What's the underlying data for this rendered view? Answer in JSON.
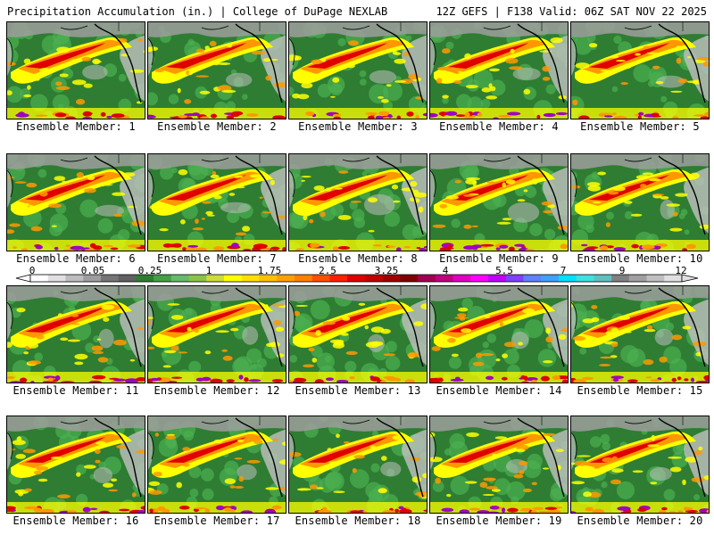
{
  "header": {
    "left_title": "Precipitation Accumulation (in.) | College of DuPage NEXLAB",
    "right_title": "12Z GEFS | F138 Valid: 06Z SAT NOV 22 2025"
  },
  "panels": [
    {
      "label": "Ensemble Member: 1"
    },
    {
      "label": "Ensemble Member: 2"
    },
    {
      "label": "Ensemble Member: 3"
    },
    {
      "label": "Ensemble Member: 4"
    },
    {
      "label": "Ensemble Member: 5"
    },
    {
      "label": "Ensemble Member: 6"
    },
    {
      "label": "Ensemble Member: 7"
    },
    {
      "label": "Ensemble Member: 8"
    },
    {
      "label": "Ensemble Member: 9"
    },
    {
      "label": "Ensemble Member: 10"
    },
    {
      "label": "Ensemble Member: 11"
    },
    {
      "label": "Ensemble Member: 12"
    },
    {
      "label": "Ensemble Member: 13"
    },
    {
      "label": "Ensemble Member: 14"
    },
    {
      "label": "Ensemble Member: 15"
    },
    {
      "label": "Ensemble Member: 16"
    },
    {
      "label": "Ensemble Member: 17"
    },
    {
      "label": "Ensemble Member: 18"
    },
    {
      "label": "Ensemble Member: 19"
    },
    {
      "label": "Ensemble Member: 20"
    }
  ],
  "colorbar": {
    "tick_labels": [
      "0",
      "0.05",
      "0.25",
      "1",
      "1.75",
      "2.5",
      "3.25",
      "4",
      "5.5",
      "7",
      "9",
      "12"
    ],
    "colors": [
      "#ffffff",
      "#e0e0e0",
      "#bdbdbd",
      "#9e9e9e",
      "#757575",
      "#616161",
      "#2e7d32",
      "#43a047",
      "#66bb6a",
      "#8bc34a",
      "#cddc39",
      "#ffff00",
      "#ffe000",
      "#ffc000",
      "#ffa000",
      "#ff8000",
      "#ff5000",
      "#ff2000",
      "#e00000",
      "#c00000",
      "#a00000",
      "#800000",
      "#a00050",
      "#c00080",
      "#e000c0",
      "#ff00ff",
      "#c000ff",
      "#8040ff",
      "#6080ff",
      "#40a0ff",
      "#00e0ff",
      "#40e0e0",
      "#60c0c0",
      "#808080",
      "#a0a0a0",
      "#c0c0c0",
      "#e0e0e0"
    ]
  },
  "map_colors": {
    "ocean_base": "#2e7d32",
    "ocean_mid": "#4caf50",
    "light": "#c0c0c0",
    "band_yellow": "#ffff00",
    "band_orange": "#ff9800",
    "band_red": "#e00000",
    "band_purple": "#a000c0",
    "land_grey": "#9e9e9e",
    "coast": "#000000"
  }
}
